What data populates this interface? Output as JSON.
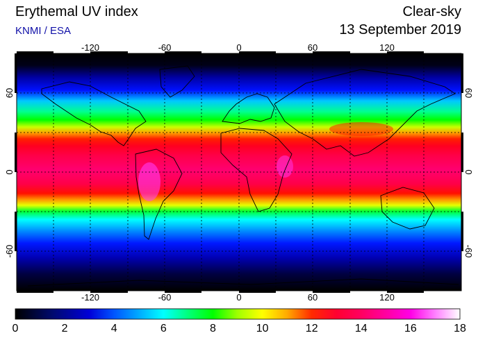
{
  "header": {
    "title": "Erythemal UV index",
    "source": "KNMI / ESA",
    "sky_condition": "Clear-sky",
    "date": "13 September 2019"
  },
  "map": {
    "lon_ticks": [
      "-120",
      "-60",
      "0",
      "60",
      "120"
    ],
    "lat_ticks_left": [
      "60",
      "0",
      "-60"
    ],
    "lat_ticks_right": [
      "60",
      "0",
      "-60"
    ],
    "gridlines": true,
    "lon_range": [
      -180,
      180
    ],
    "lat_range": [
      -90,
      90
    ]
  },
  "colorbar": {
    "labels": [
      "0",
      "2",
      "4",
      "6",
      "8",
      "10",
      "12",
      "14",
      "16",
      "18"
    ],
    "min": 0,
    "max": 18,
    "stops": [
      {
        "value": 0,
        "color": "#000000"
      },
      {
        "value": 1.5,
        "color": "#000a6e"
      },
      {
        "value": 3,
        "color": "#0000d8"
      },
      {
        "value": 4,
        "color": "#0055ff"
      },
      {
        "value": 5,
        "color": "#00aaff"
      },
      {
        "value": 6,
        "color": "#00ffff"
      },
      {
        "value": 7,
        "color": "#00ff7a"
      },
      {
        "value": 8,
        "color": "#00ff00"
      },
      {
        "value": 9,
        "color": "#a0ff00"
      },
      {
        "value": 10,
        "color": "#ffff00"
      },
      {
        "value": 11,
        "color": "#ffaa00"
      },
      {
        "value": 12,
        "color": "#ff2a00"
      },
      {
        "value": 13,
        "color": "#ff0030"
      },
      {
        "value": 14,
        "color": "#ff0060"
      },
      {
        "value": 15,
        "color": "#ff00a0"
      },
      {
        "value": 16,
        "color": "#ff00e6"
      },
      {
        "value": 17,
        "color": "#ff80ff"
      },
      {
        "value": 18,
        "color": "#ffffff"
      }
    ]
  }
}
